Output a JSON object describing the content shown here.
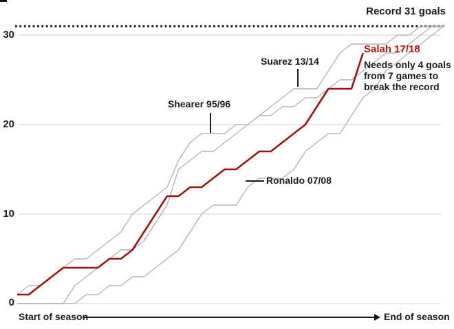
{
  "record": {
    "label": "Record 31 goals",
    "value": 31
  },
  "chart_data": {
    "type": "line",
    "title": "Record 31 goals",
    "x_axis": {
      "start_label": "Start of season",
      "end_label": "End of season",
      "total_games": 38
    },
    "y_axis": {
      "ticks": [
        0,
        10,
        20,
        30
      ],
      "range": [
        0,
        32
      ]
    },
    "record_line": {
      "value": 31,
      "style": "dotted",
      "color": "#111111"
    },
    "grid": {
      "visible": true,
      "color": "#d2d2d2"
    },
    "series": [
      {
        "name": "Shearer 95/96",
        "color": "#b3b3b3",
        "width": 1.4,
        "values": [
          1,
          2,
          2,
          3,
          4,
          5,
          5,
          6,
          7,
          8,
          10,
          11,
          12,
          13,
          16,
          18,
          19,
          19,
          19,
          20,
          20,
          21,
          21,
          22,
          22,
          23,
          23,
          24,
          25,
          25,
          26,
          27,
          28,
          28,
          29,
          30,
          31,
          31
        ]
      },
      {
        "name": "Suarez 13/14",
        "color": "#b3b3b3",
        "width": 1.4,
        "values": [
          0,
          0,
          0,
          0,
          0,
          2,
          3,
          4,
          5,
          6,
          6,
          7,
          9,
          11,
          15,
          16,
          17,
          17,
          18,
          19,
          20,
          21,
          22,
          23,
          24,
          24,
          24,
          26,
          28,
          29,
          29,
          29,
          29,
          30,
          30,
          31,
          31,
          31
        ]
      },
      {
        "name": "Ronaldo 07/08",
        "color": "#b3b3b3",
        "width": 1.4,
        "values": [
          0,
          0,
          0,
          0,
          0,
          0,
          1,
          1,
          2,
          2,
          3,
          3,
          4,
          5,
          6,
          8,
          10,
          11,
          11,
          11,
          13,
          14,
          14,
          14,
          15,
          17,
          18,
          19,
          19,
          21,
          23,
          24,
          26,
          27,
          28,
          29,
          30,
          31
        ]
      },
      {
        "name": "Salah 17/18",
        "color": "#9c1210",
        "width": 2.6,
        "values": [
          1,
          1,
          2,
          3,
          4,
          4,
          4,
          4,
          5,
          5,
          6,
          8,
          10,
          12,
          12,
          13,
          13,
          14,
          15,
          15,
          16,
          17,
          17,
          18,
          19,
          20,
          22,
          24,
          24,
          24,
          28
        ]
      }
    ]
  },
  "annotations": {
    "shearer": "Shearer 95/96",
    "suarez": "Suarez 13/14",
    "ronaldo": "Ronaldo 07/08",
    "salah_title": "Salah 17/18",
    "salah_note": "Needs only 4 goals\nfrom 7 games to\nbreak the record",
    "salah_status": {
      "goals": 28,
      "games_played": 31,
      "goals_needed": 4,
      "games_left": 7
    }
  },
  "colors": {
    "salah_line": "#9c1210",
    "salah_label": "#ad1a16",
    "other_lines": "#b3b3b3",
    "text": "#1a1a1a",
    "grid": "#d2d2d2",
    "record_dots": "#111111"
  }
}
